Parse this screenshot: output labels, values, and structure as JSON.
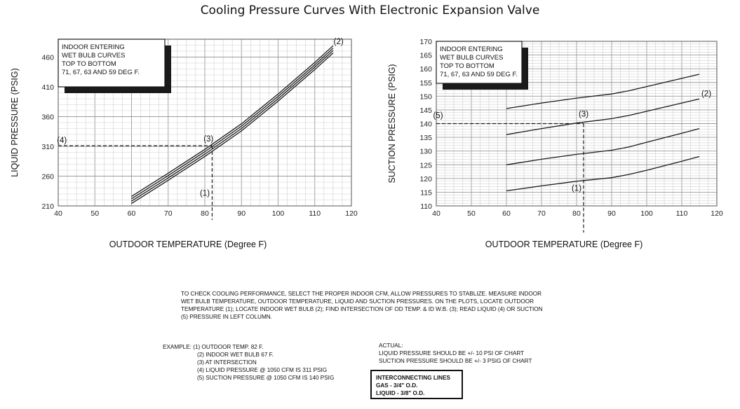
{
  "page_title": "Cooling Pressure Curves With Electronic Expansion Valve",
  "chart_data": [
    {
      "type": "line",
      "xlabel": "OUTDOOR TEMPERATURE (Degree F)",
      "ylabel": "LIQUID PRESSURE (PSIG)",
      "xlim": [
        40,
        120
      ],
      "ylim": [
        210,
        490
      ],
      "x_ticks": [
        40,
        50,
        60,
        70,
        80,
        90,
        100,
        110,
        120
      ],
      "y_ticks": [
        210,
        260,
        310,
        360,
        410,
        460
      ],
      "grid": true,
      "legend_box": [
        "INDOOR ENTERING",
        "WET BULB CURVES",
        "TOP TO BOTTOM",
        "71, 67, 63 AND 59 DEG F."
      ],
      "series": [
        {
          "x": [
            60,
            70,
            80,
            90,
            100,
            110,
            115
          ],
          "y": [
            226,
            265,
            305,
            348,
            398,
            451,
            479
          ]
        },
        {
          "x": [
            60,
            70,
            80,
            90,
            100,
            110,
            115
          ],
          "y": [
            222,
            261,
            301,
            344,
            394,
            447,
            475
          ]
        },
        {
          "x": [
            60,
            70,
            80,
            90,
            100,
            110,
            115
          ],
          "y": [
            218,
            257,
            297,
            340,
            390,
            443,
            471
          ]
        },
        {
          "x": [
            60,
            70,
            80,
            90,
            100,
            110,
            115
          ],
          "y": [
            214,
            253,
            293,
            336,
            386,
            439,
            467
          ]
        }
      ],
      "example": {
        "x": 82,
        "y": 311
      },
      "annotations": [
        {
          "text": "(1)",
          "x": 80,
          "y": 227
        },
        {
          "text": "(2)",
          "x": 116.5,
          "y": 482
        },
        {
          "text": "(3)",
          "x": 81,
          "y": 318
        },
        {
          "text": "(4)",
          "x": 41,
          "y": 316
        }
      ]
    },
    {
      "type": "line",
      "xlabel": "OUTDOOR TEMPERATURE (Degree F)",
      "ylabel": "SUCTION PRESSURE (PSIG)",
      "xlim": [
        40,
        120
      ],
      "ylim": [
        110,
        170
      ],
      "x_ticks": [
        40,
        50,
        60,
        70,
        80,
        90,
        100,
        110,
        120
      ],
      "y_ticks": [
        110,
        115,
        120,
        125,
        130,
        135,
        140,
        145,
        150,
        155,
        160,
        165,
        170
      ],
      "grid": true,
      "legend_box": [
        "INDOOR ENTERING",
        "WET BULB CURVES",
        "TOP TO BOTTOM",
        "71, 67, 63 AND 59 DEG F."
      ],
      "series": [
        {
          "x": [
            60,
            70,
            80,
            90,
            95,
            100,
            110,
            115
          ],
          "y": [
            145.5,
            147.5,
            149.3,
            150.8,
            152,
            153.5,
            156.5,
            158
          ]
        },
        {
          "x": [
            60,
            70,
            80,
            90,
            95,
            100,
            110,
            115
          ],
          "y": [
            136,
            138.2,
            140.2,
            141.8,
            143,
            144.5,
            147.5,
            149
          ]
        },
        {
          "x": [
            60,
            70,
            80,
            90,
            95,
            100,
            110,
            115
          ],
          "y": [
            125,
            127,
            128.8,
            130.3,
            131.5,
            133.2,
            136.5,
            138.2
          ]
        },
        {
          "x": [
            60,
            70,
            80,
            90,
            95,
            100,
            110,
            115
          ],
          "y": [
            115.5,
            117.3,
            119,
            120.3,
            121.5,
            123,
            126.3,
            128
          ]
        }
      ],
      "example": {
        "x": 82,
        "y": 140
      },
      "annotations": [
        {
          "text": "(1)",
          "x": 80,
          "y": 115.5
        },
        {
          "text": "(2)",
          "x": 117,
          "y": 150
        },
        {
          "text": "(3)",
          "x": 82,
          "y": 142.5
        },
        {
          "text": "(5)",
          "x": 40.5,
          "y": 142
        }
      ]
    }
  ],
  "instructions": {
    "lines": [
      "TO CHECK COOLING PERFORMANCE, SELECT THE PROPER INDOOR CFM, ALLOW PRESSURES TO STABLIZE. MEASURE INDOOR",
      "WET BULB TEMPERATURE, OUTDOOR TEMPERATURE, LIQUID AND SUCTION PRESSURES. ON THE PLOTS, LOCATE OUTDOOR",
      "TEMPERATURE (1); LOCATE INDOOR WET BULB (2); FIND INTERSECTION OF OD TEMP. & ID W.B. (3); READ LIQUID (4) OR SUCTION",
      "(5) PRESSURE IN LEFT COLUMN."
    ]
  },
  "example": {
    "first": "EXAMPLE: (1) OUTDOOR TEMP. 82 F.",
    "items": [
      "(2) INDOOR WET BULB 67 F.",
      "(3) AT INTERSECTION",
      "(4) LIQUID PRESSURE @ 1050 CFM IS 311 PSIG",
      "(5) SUCTION PRESSURE @ 1050 CFM IS 140 PSIG"
    ]
  },
  "actual": {
    "title": "ACTUAL:",
    "lines": [
      "LIQUID PRESSURE SHOULD BE +/- 10 PSI OF CHART",
      "SUCTION PRESSURE SHOULD BE +/- 3 PSIG OF CHART"
    ]
  },
  "interconnecting": {
    "title": "INTERCONNECTING LINES",
    "gas": "GAS - 3/4\" O.D.",
    "liquid": "LIQUID - 3/8\" O.D."
  }
}
